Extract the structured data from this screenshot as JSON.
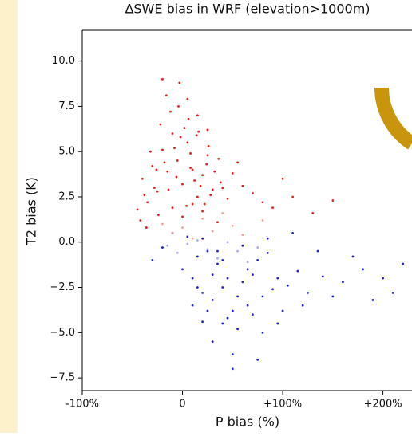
{
  "chart_data": {
    "type": "scatter",
    "title": "ΔSWE bias in WRF (elevation>1000m)",
    "x_label": "P bias (%)",
    "y_label": "T2 bias (K)",
    "xlim": [
      -100,
      229
    ],
    "ylim": [
      -8.2,
      11.7
    ],
    "xticks": [
      {
        "value": -100,
        "label": "-100%"
      },
      0,
      {
        "value": 100,
        "label": "+100%"
      },
      {
        "value": 200,
        "label": "+200%"
      }
    ],
    "yticks": [
      {
        "value": 10,
        "label": "10.0"
      },
      {
        "value": 7.5,
        "label": "7.5"
      },
      {
        "value": 5,
        "label": "5.0"
      },
      {
        "value": 2.5,
        "label": "2.5"
      },
      {
        "value": 0,
        "label": "0.0"
      },
      {
        "value": -2.5,
        "label": "−2.5"
      },
      {
        "value": -5,
        "label": "−5.0"
      },
      {
        "value": -7.5,
        "label": "−7.5"
      }
    ],
    "series": [
      {
        "color": "#e3201c",
        "x": [
          -40,
          -30,
          -25,
          -20,
          -15,
          -10,
          -5,
          0,
          5,
          10,
          15,
          20,
          25,
          30,
          -35,
          -28,
          -18,
          -8,
          2,
          12,
          22,
          32,
          -22,
          -12,
          -2,
          8,
          18,
          28,
          38,
          45,
          -45,
          -38,
          -32,
          -26,
          -14,
          -6,
          4,
          14,
          24,
          -16,
          -4,
          6,
          16,
          26,
          36,
          50,
          60,
          70,
          80,
          90,
          100,
          110,
          130,
          150,
          -42,
          -36,
          -24,
          -10,
          0,
          10,
          20,
          35,
          5,
          -3,
          15,
          25,
          -20,
          8,
          40,
          55
        ],
        "values": [
          3.5,
          4.2,
          2.8,
          5.1,
          3.9,
          6.0,
          4.5,
          3.2,
          5.5,
          4.0,
          2.5,
          3.7,
          4.8,
          2.9,
          2.2,
          3.0,
          4.4,
          5.2,
          6.3,
          3.4,
          2.1,
          3.9,
          6.5,
          7.2,
          5.8,
          4.9,
          3.1,
          2.6,
          3.3,
          2.4,
          1.8,
          2.6,
          5.0,
          4.0,
          2.9,
          3.6,
          2.0,
          5.9,
          4.3,
          8.1,
          7.5,
          6.8,
          6.1,
          5.3,
          4.6,
          3.8,
          3.1,
          2.7,
          2.2,
          1.9,
          3.5,
          2.5,
          1.6,
          2.3,
          1.2,
          0.8,
          1.5,
          1.9,
          1.4,
          2.1,
          1.7,
          1.1,
          7.9,
          8.8,
          7.0,
          6.2,
          9.0,
          4.1,
          3.0,
          4.4
        ]
      },
      {
        "color": "#2222cc",
        "x": [
          0,
          10,
          20,
          30,
          40,
          50,
          60,
          70,
          80,
          90,
          25,
          35,
          45,
          55,
          65,
          75,
          85,
          95,
          105,
          115,
          125,
          140,
          160,
          180,
          200,
          220,
          5,
          15,
          -10,
          -20,
          30,
          50,
          70,
          10,
          40,
          60,
          20,
          80,
          100,
          -30,
          45,
          55,
          35,
          65,
          25,
          15,
          95,
          120,
          150,
          170,
          210,
          190,
          135,
          110,
          85,
          75,
          50,
          40,
          30,
          20
        ],
        "values": [
          -1.5,
          -2.0,
          -2.8,
          -3.2,
          -2.5,
          -3.8,
          -2.2,
          -1.8,
          -3.0,
          -2.6,
          -0.5,
          -1.2,
          -4.2,
          -4.8,
          -3.5,
          -1.0,
          -0.6,
          -2.0,
          -2.4,
          -1.6,
          -2.8,
          -1.9,
          -2.2,
          -1.5,
          -2.0,
          -1.2,
          0.3,
          -0.8,
          0.5,
          -0.3,
          -5.5,
          -6.2,
          -4.0,
          -3.5,
          -1.0,
          -0.2,
          0.2,
          -5.0,
          -3.8,
          -1.0,
          -2.0,
          -3.0,
          -0.5,
          -1.5,
          -3.8,
          -2.5,
          -4.5,
          -3.5,
          -3.0,
          -0.8,
          -2.8,
          -3.2,
          -0.5,
          0.5,
          0.2,
          -6.5,
          -7.0,
          -4.5,
          -1.8,
          -4.4
        ]
      },
      {
        "color": "#f2a39b",
        "x": [
          -20,
          -10,
          0,
          10,
          20,
          30,
          40,
          50,
          60,
          80
        ],
        "values": [
          1.0,
          0.5,
          0.8,
          0.2,
          1.3,
          0.6,
          1.6,
          0.9,
          0.4,
          1.2
        ]
      },
      {
        "color": "#a6acee",
        "x": [
          -15,
          -5,
          5,
          15,
          25,
          35,
          45,
          55,
          65,
          75
        ],
        "values": [
          -0.2,
          -0.6,
          -0.1,
          0.1,
          -0.4,
          -0.9,
          0.0,
          -0.5,
          -1.1,
          -0.3
        ]
      }
    ]
  }
}
